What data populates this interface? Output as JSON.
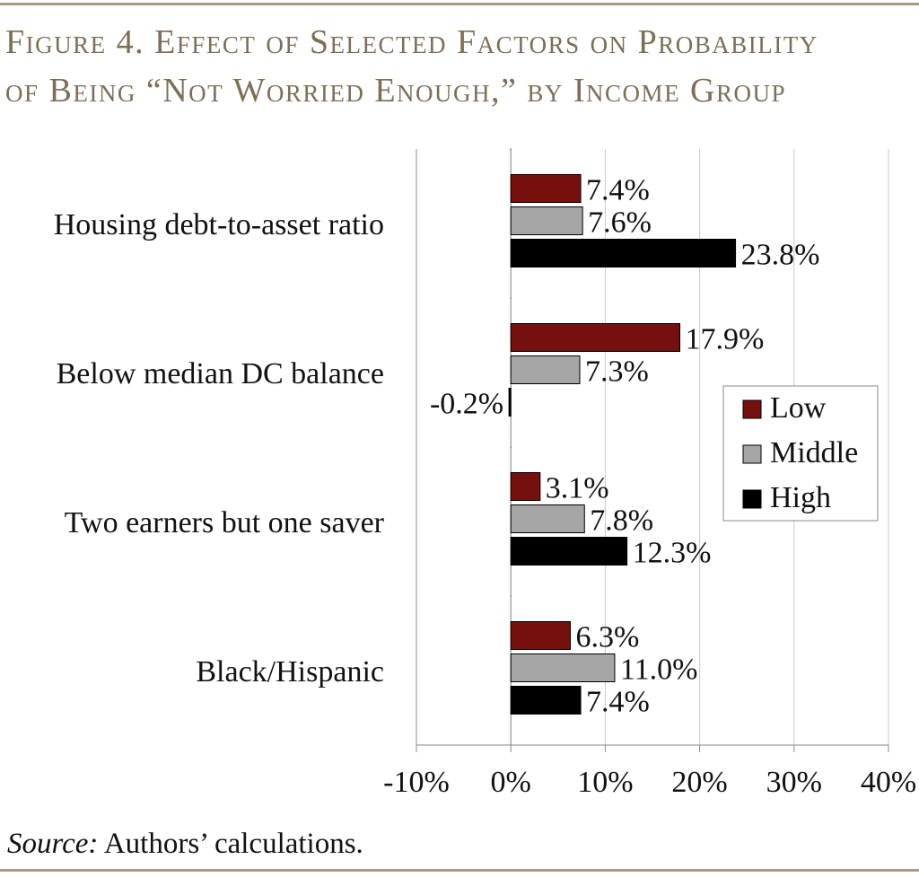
{
  "title": {
    "line1": "Figure 4. Effect of Selected Factors on Probability",
    "line2": "of Being “Not Worried Enough,” by Income Group"
  },
  "source": {
    "label": "Source:",
    "text": " Authors’ calculations."
  },
  "chart_data": {
    "type": "bar",
    "orientation": "horizontal",
    "categories": [
      "Housing debt-to-asset ratio",
      "Below median DC balance",
      "Two earners but one saver",
      "Black/Hispanic"
    ],
    "series": [
      {
        "name": "Low",
        "color": "#76100f",
        "values": [
          7.4,
          17.9,
          3.1,
          6.3
        ],
        "labels": [
          "7.4%",
          "17.9%",
          "3.1%",
          "6.3%"
        ]
      },
      {
        "name": "Middle",
        "color": "#a6a6a6",
        "values": [
          7.6,
          7.3,
          7.8,
          11.0
        ],
        "labels": [
          "7.6%",
          "7.3%",
          "7.8%",
          "11.0%"
        ]
      },
      {
        "name": "High",
        "color": "#000000",
        "values": [
          23.8,
          -0.2,
          12.3,
          7.4
        ],
        "labels": [
          "23.8%",
          "-0.2%",
          "12.3%",
          "7.4%"
        ]
      }
    ],
    "xlim": [
      -10,
      40
    ],
    "xticks": [
      -10,
      0,
      10,
      20,
      30,
      40
    ],
    "xtick_labels": [
      "-10%",
      "0%",
      "10%",
      "20%",
      "30%",
      "40%"
    ],
    "grid": true,
    "legend_position": "right",
    "unit": "%"
  }
}
